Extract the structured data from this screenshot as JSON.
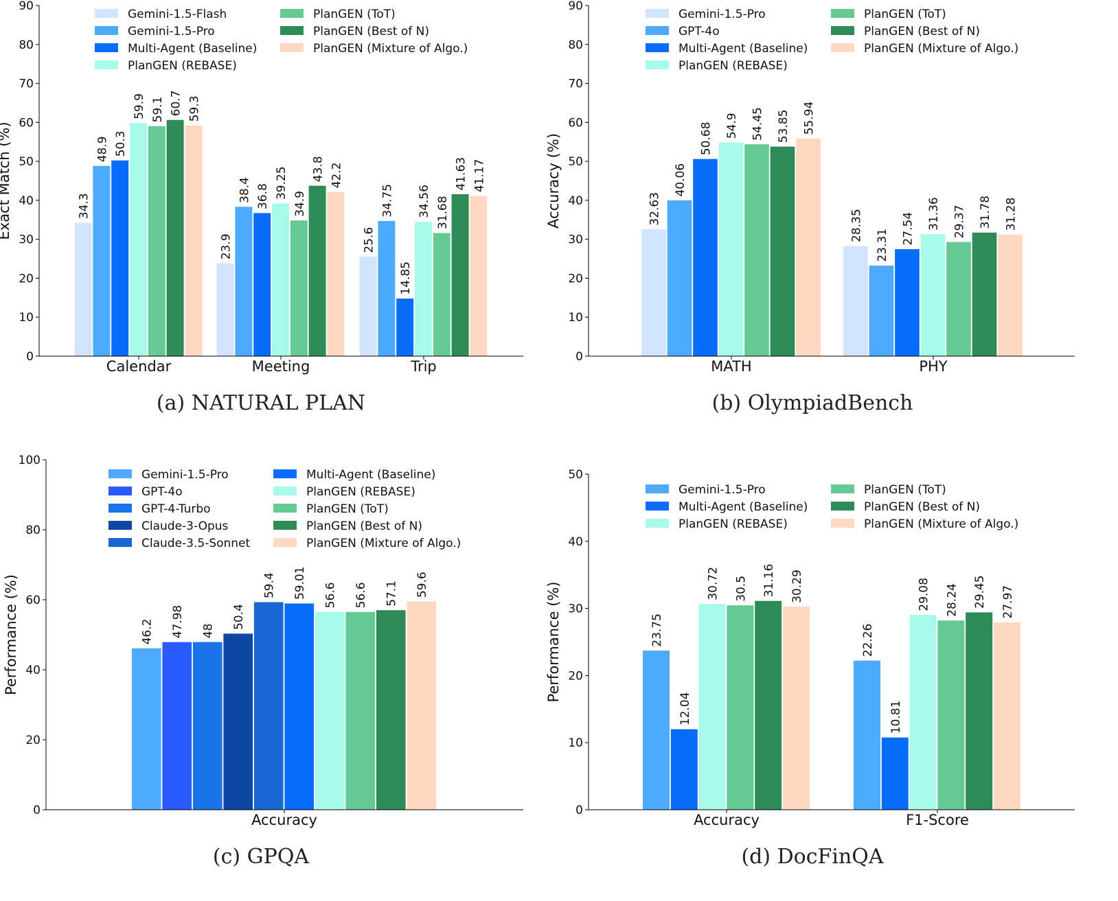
{
  "colors": {
    "Gemini-1.5-Flash": "#d2e3fc",
    "Gemini-1.5-Pro": "#4eaafe",
    "GPT-4o": "#4eaafe",
    "GPT-4o (c)": "#2a5bff",
    "GPT-4-Turbo": "#1a73e8",
    "Claude-3-Opus": "#0d47a1",
    "Claude-3.5-Sonnet": "#1967d2",
    "Multi-Agent (Baseline)": "#0a6cfa",
    "PlanGEN (REBASE)": "#a8fbe8",
    "PlanGEN (ToT)": "#66c995",
    "PlanGEN (Best of N)": "#2e8b57",
    "PlanGEN (Mixture of Algo.)": "#fed8c0"
  },
  "chart_data": [
    {
      "type": "bar",
      "caption": "(a) NATURAL PLAN",
      "ylabel": "Exact Match (%)",
      "ylim": [
        0,
        90
      ],
      "yticks": [
        0,
        10,
        20,
        30,
        40,
        50,
        60,
        70,
        80,
        90
      ],
      "categories": [
        "Calendar",
        "Meeting",
        "Trip"
      ],
      "legend": "top-left",
      "series": [
        {
          "name": "Gemini-1.5-Flash",
          "color": "#d2e3fc",
          "values": [
            34.3,
            23.9,
            25.6
          ]
        },
        {
          "name": "Gemini-1.5-Pro",
          "color": "#4eaafe",
          "values": [
            48.9,
            38.4,
            34.75
          ]
        },
        {
          "name": "Multi-Agent (Baseline)",
          "color": "#0a6cfa",
          "values": [
            50.3,
            36.8,
            14.85
          ]
        },
        {
          "name": "PlanGEN (REBASE)",
          "color": "#a8fbe8",
          "values": [
            59.9,
            39.25,
            34.56
          ]
        },
        {
          "name": "PlanGEN (ToT)",
          "color": "#66c995",
          "values": [
            59.1,
            34.9,
            31.68
          ]
        },
        {
          "name": "PlanGEN (Best of N)",
          "color": "#2e8b57",
          "values": [
            60.7,
            43.8,
            41.63
          ]
        },
        {
          "name": "PlanGEN (Mixture of Algo.)",
          "color": "#fed8c0",
          "values": [
            59.3,
            42.2,
            41.17
          ]
        }
      ]
    },
    {
      "type": "bar",
      "caption": "(b) OlympiadBench",
      "ylabel": "Accuracy (%)",
      "ylim": [
        0,
        90
      ],
      "yticks": [
        0,
        10,
        20,
        30,
        40,
        50,
        60,
        70,
        80,
        90
      ],
      "categories": [
        "MATH",
        "PHY"
      ],
      "legend": "top-left",
      "series": [
        {
          "name": "Gemini-1.5-Pro",
          "color": "#d2e3fc",
          "values": [
            32.63,
            28.35
          ]
        },
        {
          "name": "GPT-4o",
          "color": "#4eaafe",
          "values": [
            40.06,
            23.31
          ]
        },
        {
          "name": "Multi-Agent (Baseline)",
          "color": "#0a6cfa",
          "values": [
            50.68,
            27.54
          ]
        },
        {
          "name": "PlanGEN (REBASE)",
          "color": "#a8fbe8",
          "values": [
            54.9,
            31.36
          ]
        },
        {
          "name": "PlanGEN (ToT)",
          "color": "#66c995",
          "values": [
            54.45,
            29.37
          ]
        },
        {
          "name": "PlanGEN (Best of N)",
          "color": "#2e8b57",
          "values": [
            53.85,
            31.78
          ]
        },
        {
          "name": "PlanGEN (Mixture of Algo.)",
          "color": "#fed8c0",
          "values": [
            55.94,
            31.28
          ]
        }
      ]
    },
    {
      "type": "bar",
      "caption": "(c) GPQA",
      "ylabel": "Performance (%)",
      "ylim": [
        0,
        100
      ],
      "yticks": [
        0,
        20,
        40,
        60,
        80,
        100
      ],
      "categories": [
        "Accuracy"
      ],
      "legend": "top-left",
      "series": [
        {
          "name": "Gemini-1.5-Pro",
          "color": "#4eaafe",
          "values": [
            46.2
          ]
        },
        {
          "name": "GPT-4o",
          "color": "#2a5bff",
          "values": [
            47.98
          ]
        },
        {
          "name": "GPT-4-Turbo",
          "color": "#1a73e8",
          "values": [
            48
          ]
        },
        {
          "name": "Claude-3-Opus",
          "color": "#0d47a1",
          "values": [
            50.4
          ]
        },
        {
          "name": "Claude-3.5-Sonnet",
          "color": "#1967d2",
          "values": [
            59.4
          ]
        },
        {
          "name": "Multi-Agent (Baseline)",
          "color": "#0a6cfa",
          "values": [
            59.01
          ]
        },
        {
          "name": "PlanGEN (REBASE)",
          "color": "#a8fbe8",
          "values": [
            56.6
          ]
        },
        {
          "name": "PlanGEN (ToT)",
          "color": "#66c995",
          "values": [
            56.6
          ]
        },
        {
          "name": "PlanGEN (Best of N)",
          "color": "#2e8b57",
          "values": [
            57.1
          ]
        },
        {
          "name": "PlanGEN (Mixture of Algo.)",
          "color": "#fed8c0",
          "values": [
            59.6
          ]
        }
      ]
    },
    {
      "type": "bar",
      "caption": "(d) DocFinQA",
      "ylabel": "Performance (%)",
      "ylim": [
        0,
        50
      ],
      "yticks": [
        0,
        10,
        20,
        30,
        40,
        50
      ],
      "categories": [
        "Accuracy",
        "F1-Score"
      ],
      "legend": "top-left",
      "series": [
        {
          "name": "Gemini-1.5-Pro",
          "color": "#4eaafe",
          "values": [
            23.75,
            22.26
          ]
        },
        {
          "name": "Multi-Agent (Baseline)",
          "color": "#0a6cfa",
          "values": [
            12.04,
            10.81
          ]
        },
        {
          "name": "PlanGEN (REBASE)",
          "color": "#a8fbe8",
          "values": [
            30.72,
            29.08
          ]
        },
        {
          "name": "PlanGEN (ToT)",
          "color": "#66c995",
          "values": [
            30.5,
            28.24
          ]
        },
        {
          "name": "PlanGEN (Best of N)",
          "color": "#2e8b57",
          "values": [
            31.16,
            29.45
          ]
        },
        {
          "name": "PlanGEN (Mixture of Algo.)",
          "color": "#fed8c0",
          "values": [
            30.29,
            27.97
          ]
        }
      ]
    }
  ]
}
